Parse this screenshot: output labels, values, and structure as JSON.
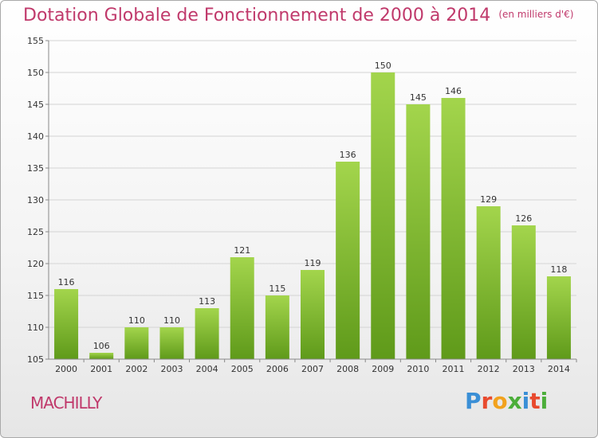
{
  "header": {
    "title": "Dotation Globale de Fonctionnement de 2000 à 2014",
    "unit": "(en milliers d'€)"
  },
  "commune": "MACHILLY",
  "logo": {
    "text": "Proxiti",
    "letters": [
      "P",
      "r",
      "o",
      "x",
      "i",
      "t",
      "i"
    ],
    "colors": [
      "#3a8fd6",
      "#e84a2e",
      "#f2a21d",
      "#4cae3a",
      "#3a8fd6",
      "#e84a2e",
      "#4cae3a"
    ]
  },
  "colors": {
    "bar_top": "#a3d54c",
    "bar_bottom": "#5f9a1a",
    "title": "#c0396b"
  },
  "chart_data": {
    "type": "bar",
    "title": "Dotation Globale de Fonctionnement de 2000 à 2014",
    "subtitle": "(en milliers d'€)",
    "categories": [
      "2000",
      "2001",
      "2002",
      "2003",
      "2004",
      "2005",
      "2006",
      "2007",
      "2008",
      "2009",
      "2010",
      "2011",
      "2012",
      "2013",
      "2014"
    ],
    "values": [
      116,
      106,
      110,
      110,
      113,
      121,
      115,
      119,
      136,
      150,
      145,
      146,
      129,
      126,
      118
    ],
    "ylim": [
      105,
      155
    ],
    "yticks": [
      105,
      110,
      115,
      120,
      125,
      130,
      135,
      140,
      145,
      150,
      155
    ],
    "grid": true
  }
}
